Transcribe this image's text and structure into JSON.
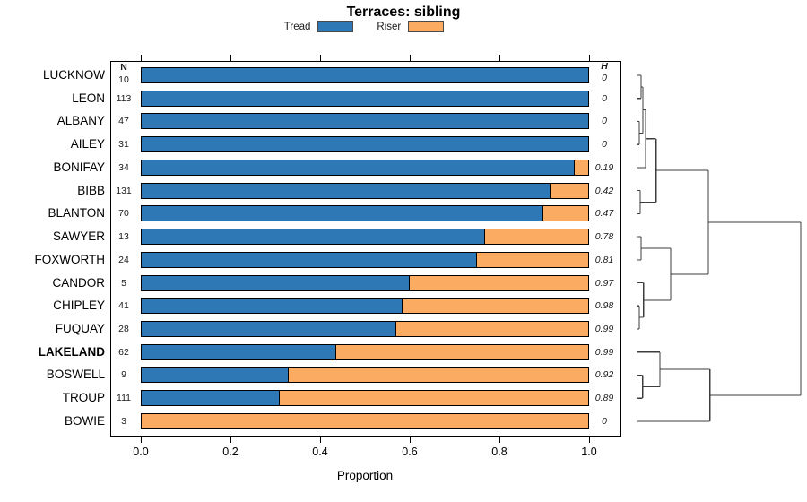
{
  "title": "Terraces: sibling",
  "legend": {
    "items": [
      {
        "label": "Tread",
        "color": "#2e79b5"
      },
      {
        "label": "Riser",
        "color": "#fbab62"
      }
    ]
  },
  "columns": {
    "n_header": "N",
    "h_header": "H"
  },
  "axis": {
    "label": "Proportion",
    "ticks": [
      "0.0",
      "0.2",
      "0.4",
      "0.6",
      "0.8",
      "1.0"
    ],
    "tick_values": [
      0,
      0.2,
      0.4,
      0.6,
      0.8,
      1.0
    ],
    "xlim": [
      0,
      1
    ]
  },
  "chart_data": {
    "type": "bar",
    "orientation": "horizontal-stacked",
    "title": "Terraces: sibling",
    "xlabel": "Proportion",
    "xlim": [
      0,
      1
    ],
    "categories": [
      "LUCKNOW",
      "LEON",
      "ALBANY",
      "AILEY",
      "BONIFAY",
      "BIBB",
      "BLANTON",
      "SAWYER",
      "FOXWORTH",
      "CANDOR",
      "CHIPLEY",
      "FUQUAY",
      "LAKELAND",
      "BOSWELL",
      "TROUP",
      "BOWIE"
    ],
    "bold_index": 12,
    "n_values": [
      10,
      113,
      47,
      31,
      34,
      131,
      70,
      13,
      24,
      5,
      41,
      28,
      62,
      9,
      111,
      3
    ],
    "h_values": [
      "0",
      "0",
      "0",
      "0",
      "0.19",
      "0.42",
      "0.47",
      "0.78",
      "0.81",
      "0.97",
      "0.98",
      "0.99",
      "0.99",
      "0.92",
      "0.89",
      "0"
    ],
    "series": [
      {
        "name": "Tread",
        "color": "#2e79b5",
        "values": [
          1,
          1,
          1,
          1,
          0.97,
          0.915,
          0.9,
          0.77,
          0.75,
          0.6,
          0.585,
          0.57,
          0.435,
          0.33,
          0.31,
          0
        ]
      },
      {
        "name": "Riser",
        "color": "#fbab62",
        "values": [
          0,
          0,
          0,
          0,
          0.03,
          0.085,
          0.1,
          0.23,
          0.25,
          0.4,
          0.415,
          0.43,
          0.565,
          0.67,
          0.69,
          1
        ]
      }
    ],
    "legend_position": "top",
    "grid": false
  },
  "dendrogram": {
    "line_color": "#3d3d3d",
    "tree": {
      "h": 183,
      "children": [
        {
          "h": 80,
          "children": [
            {
              "h": 21.7,
              "children": [
                {
                  "h": 10,
                  "children": [
                    {
                      "h": 7,
                      "children": [
                        {
                          "h": 5,
                          "children": [
                            {
                              "leaf": 0
                            },
                            {
                              "leaf": 1
                            }
                          ]
                        },
                        {
                          "h": 3,
                          "children": [
                            {
                              "leaf": 2
                            },
                            {
                              "leaf": 3
                            }
                          ]
                        }
                      ]
                    },
                    {
                      "leaf": 4
                    }
                  ]
                },
                {
                  "h": 4,
                  "children": [
                    {
                      "leaf": 5
                    },
                    {
                      "leaf": 6
                    }
                  ]
                }
              ]
            },
            {
              "h": 38,
              "children": [
                {
                  "h": 5,
                  "children": [
                    {
                      "leaf": 7
                    },
                    {
                      "leaf": 8
                    }
                  ]
                },
                {
                  "h": 7.7,
                  "children": [
                    {
                      "leaf": 9
                    },
                    {
                      "h": 3,
                      "children": [
                        {
                          "leaf": 10
                        },
                        {
                          "leaf": 11
                        }
                      ]
                    }
                  ]
                }
              ]
            }
          ]
        },
        {
          "h": 81.7,
          "children": [
            {
              "h": 26,
              "children": [
                {
                  "leaf": 12
                },
                {
                  "h": 6.7,
                  "children": [
                    {
                      "leaf": 13
                    },
                    {
                      "leaf": 14
                    }
                  ]
                }
              ]
            },
            {
              "leaf": 15
            }
          ]
        }
      ]
    }
  }
}
